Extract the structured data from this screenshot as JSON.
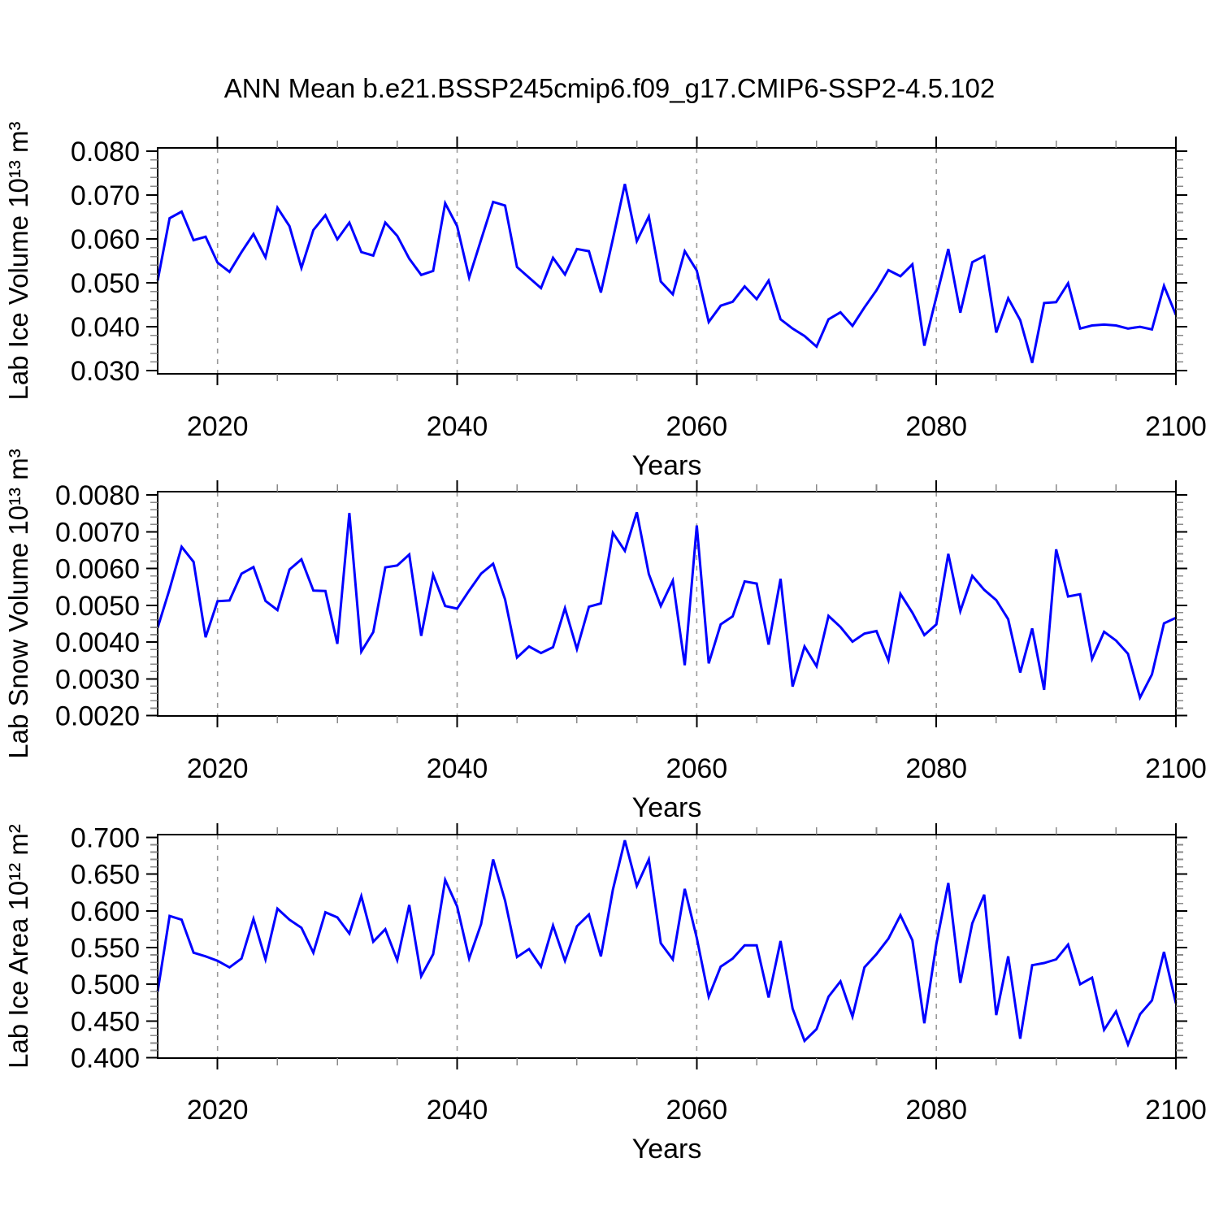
{
  "colors": {
    "line": "#0000ff",
    "grid": "#999999",
    "axis": "#000000",
    "major_tick": "#000000",
    "minor_tick": "#8a8a8a",
    "text": "#000000",
    "background": "#ffffff"
  },
  "chart_data": {
    "type": "line",
    "title": "ANN Mean b.e21.BSSP245cmip6.f09_g17.CMIP6-SSP2-4.5.102",
    "x_label": "Years",
    "x_range": [
      2015,
      2100
    ],
    "x_major_ticks": [
      2020,
      2040,
      2060,
      2080,
      2100
    ],
    "x_major_tick_labels": [
      "2020",
      "2040",
      "2060",
      "2080",
      "2100"
    ],
    "x_minor_step": 5,
    "x_gridlines": [
      2020,
      2040,
      2060,
      2080
    ],
    "grid_on": true,
    "legend": "none",
    "years": [
      2015,
      2016,
      2017,
      2018,
      2019,
      2020,
      2021,
      2022,
      2023,
      2024,
      2025,
      2026,
      2027,
      2028,
      2029,
      2030,
      2031,
      2032,
      2033,
      2034,
      2035,
      2036,
      2037,
      2038,
      2039,
      2040,
      2041,
      2042,
      2043,
      2044,
      2045,
      2046,
      2047,
      2048,
      2049,
      2050,
      2051,
      2052,
      2053,
      2054,
      2055,
      2056,
      2057,
      2058,
      2059,
      2060,
      2061,
      2062,
      2063,
      2064,
      2065,
      2066,
      2067,
      2068,
      2069,
      2070,
      2071,
      2072,
      2073,
      2074,
      2075,
      2076,
      2077,
      2078,
      2079,
      2080,
      2081,
      2082,
      2083,
      2084,
      2085,
      2086,
      2087,
      2088,
      2089,
      2090,
      2091,
      2092,
      2093,
      2094,
      2095,
      2096,
      2097,
      2098,
      2099,
      2100
    ],
    "panels": [
      {
        "name": "lab-ice-volume",
        "ylabel": "Lab Ice Volume 10¹³ m³",
        "y_range": [
          0.0293,
          0.0807
        ],
        "y_major_ticks": [
          0.08,
          0.07,
          0.06,
          0.05,
          0.04,
          0.03
        ],
        "y_major_tick_labels": [
          "0.080",
          "0.070",
          "0.060",
          "0.050",
          "0.040",
          "0.030"
        ],
        "y_minor_step": 0.002,
        "values": [
          0.0505,
          0.0647,
          0.0662,
          0.0597,
          0.0605,
          0.0546,
          0.0525,
          0.057,
          0.0611,
          0.0558,
          0.0671,
          0.0629,
          0.0534,
          0.062,
          0.0654,
          0.0599,
          0.0637,
          0.057,
          0.0562,
          0.0637,
          0.0607,
          0.0555,
          0.0518,
          0.0527,
          0.0681,
          0.0629,
          0.0512,
          0.0598,
          0.0684,
          0.0676,
          0.0536,
          0.0512,
          0.0488,
          0.0557,
          0.0519,
          0.0577,
          0.0572,
          0.0478,
          0.06,
          0.0725,
          0.0595,
          0.0651,
          0.0503,
          0.0474,
          0.0572,
          0.0528,
          0.0411,
          0.0448,
          0.0457,
          0.0492,
          0.0463,
          0.0505,
          0.0417,
          0.0396,
          0.0379,
          0.0355,
          0.0417,
          0.0433,
          0.0402,
          0.0444,
          0.0483,
          0.0529,
          0.0515,
          0.0542,
          0.0357,
          0.0468,
          0.0577,
          0.0432,
          0.0547,
          0.0561,
          0.0387,
          0.0465,
          0.0415,
          0.0318,
          0.0454,
          0.0456,
          0.0499,
          0.0396,
          0.0403,
          0.0405,
          0.0403,
          0.0396,
          0.04,
          0.0394,
          0.0493,
          0.0427
        ]
      },
      {
        "name": "lab-snow-volume",
        "ylabel": "Lab Snow Volume 10¹³ m³",
        "y_range": [
          0.00199,
          0.00809
        ],
        "y_major_ticks": [
          0.008,
          0.007,
          0.006,
          0.005,
          0.004,
          0.003,
          0.002
        ],
        "y_major_tick_labels": [
          "0.0080",
          "0.0070",
          "0.0060",
          "0.0050",
          "0.0040",
          "0.0030",
          "0.0020"
        ],
        "y_minor_step": 0.0002,
        "values": [
          0.00439,
          0.00544,
          0.00659,
          0.00618,
          0.00413,
          0.00511,
          0.00513,
          0.00586,
          0.00604,
          0.00512,
          0.00487,
          0.00597,
          0.00625,
          0.0054,
          0.00539,
          0.00395,
          0.00751,
          0.00374,
          0.00427,
          0.00603,
          0.00608,
          0.00638,
          0.00417,
          0.00583,
          0.00498,
          0.00491,
          0.0054,
          0.00586,
          0.00613,
          0.00516,
          0.00358,
          0.00388,
          0.0037,
          0.00386,
          0.00492,
          0.00381,
          0.00496,
          0.00505,
          0.00697,
          0.00648,
          0.00753,
          0.00585,
          0.00498,
          0.00567,
          0.00337,
          0.00717,
          0.00342,
          0.00448,
          0.0047,
          0.00565,
          0.00559,
          0.00393,
          0.00572,
          0.00279,
          0.00388,
          0.00334,
          0.00471,
          0.00441,
          0.00401,
          0.00423,
          0.0043,
          0.0035,
          0.00531,
          0.0048,
          0.00419,
          0.00448,
          0.0064,
          0.00484,
          0.0058,
          0.00542,
          0.00514,
          0.00462,
          0.00317,
          0.00437,
          0.0027,
          0.00652,
          0.00524,
          0.0053,
          0.00354,
          0.00428,
          0.00404,
          0.00368,
          0.00249,
          0.00312,
          0.00451,
          0.00466
        ]
      },
      {
        "name": "lab-ice-area",
        "ylabel": "Lab Ice Area 10¹² m²",
        "y_range": [
          0.3995,
          0.7038
        ],
        "y_major_ticks": [
          0.7,
          0.65,
          0.6,
          0.55,
          0.5,
          0.45,
          0.4
        ],
        "y_major_tick_labels": [
          "0.700",
          "0.650",
          "0.600",
          "0.550",
          "0.500",
          "0.450",
          "0.400"
        ],
        "y_minor_step": 0.01,
        "values": [
          0.49,
          0.593,
          0.588,
          0.543,
          0.538,
          0.532,
          0.523,
          0.535,
          0.589,
          0.534,
          0.603,
          0.588,
          0.577,
          0.543,
          0.598,
          0.591,
          0.569,
          0.62,
          0.558,
          0.575,
          0.533,
          0.608,
          0.511,
          0.541,
          0.642,
          0.606,
          0.535,
          0.582,
          0.67,
          0.614,
          0.537,
          0.548,
          0.524,
          0.58,
          0.532,
          0.579,
          0.595,
          0.538,
          0.629,
          0.696,
          0.634,
          0.67,
          0.556,
          0.534,
          0.63,
          0.563,
          0.483,
          0.524,
          0.535,
          0.553,
          0.553,
          0.482,
          0.559,
          0.467,
          0.423,
          0.439,
          0.483,
          0.504,
          0.456,
          0.523,
          0.541,
          0.562,
          0.594,
          0.56,
          0.447,
          0.555,
          0.638,
          0.502,
          0.583,
          0.622,
          0.458,
          0.538,
          0.426,
          0.526,
          0.529,
          0.534,
          0.554,
          0.5,
          0.509,
          0.438,
          0.463,
          0.418,
          0.459,
          0.478,
          0.544,
          0.474
        ]
      }
    ]
  }
}
